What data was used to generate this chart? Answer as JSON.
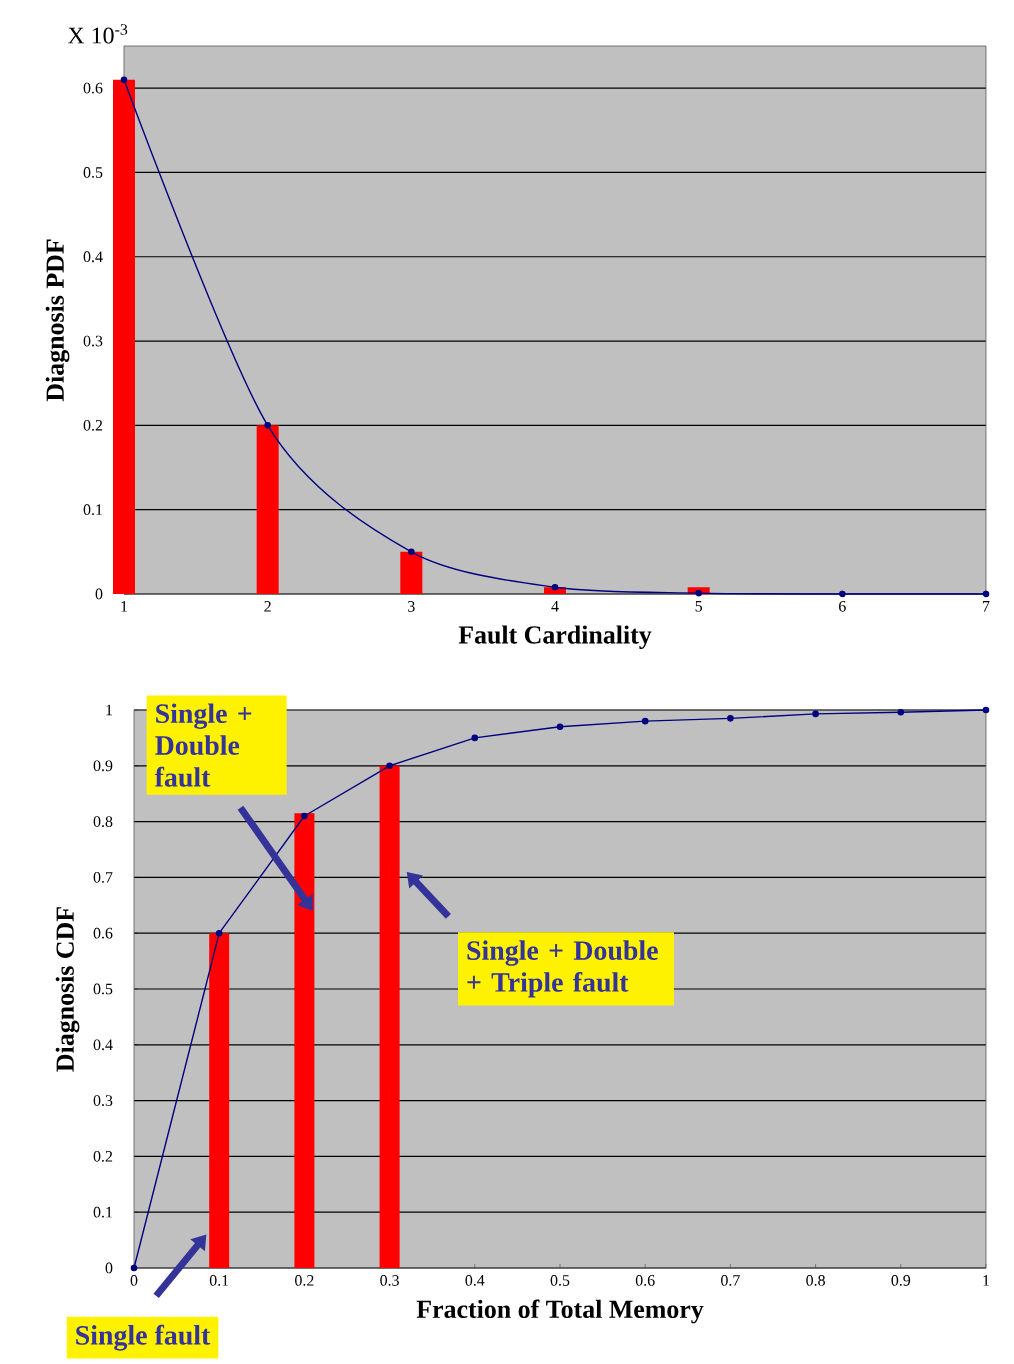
{
  "chart_data": [
    {
      "type": "bar",
      "xlabel": "Fault Cardinality",
      "ylabel": "Diagnosis PDF",
      "annotations": [
        "X 10$^{-3}$"
      ],
      "series": [
        {
          "color": "#ff0000",
          "x": [
            1,
            2,
            3,
            4,
            5
          ],
          "values": [
            0.61,
            0.2,
            0.05,
            0.008,
            0.008
          ]
        },
        {
          "type": "line",
          "color": "#000080",
          "marker": "circle",
          "x": [
            1,
            2,
            3,
            4,
            5,
            6,
            7
          ],
          "values": [
            0.61,
            0.2,
            0.05,
            0.008,
            0.001,
            0,
            0
          ]
        }
      ],
      "xlim": [
        1,
        7
      ],
      "ylim": [
        0,
        0.65
      ],
      "xticks": [
        1,
        2,
        3,
        4,
        5,
        6,
        7
      ],
      "yticks": [
        0,
        0.1,
        0.2,
        0.3,
        0.4,
        0.5,
        0.6
      ],
      "grid": "y"
    },
    {
      "type": "bar",
      "xlabel": "Fraction of Total Memory",
      "ylabel": "Diagnosis CDF",
      "annotations": [
        {
          "text": "Single fault",
          "x": 0.085,
          "y": 0.06
        },
        {
          "text": "Single + Double fault",
          "x": 0.21,
          "y": 0.64
        },
        {
          "text": "Single + Double + Triple fault",
          "x": 0.32,
          "y": 0.71
        }
      ],
      "series": [
        {
          "color": "#ff0000",
          "x": [
            0.1,
            0.2,
            0.3
          ],
          "values": [
            0.6,
            0.815,
            0.9
          ]
        },
        {
          "type": "line",
          "color": "#000080",
          "marker": "circle",
          "x": [
            0,
            0.1,
            0.2,
            0.3,
            0.4,
            0.5,
            0.6,
            0.7,
            0.8,
            0.9,
            1
          ],
          "values": [
            0,
            0.6,
            0.81,
            0.9,
            0.95,
            0.97,
            0.98,
            0.985,
            0.993,
            0.996,
            1
          ]
        }
      ],
      "xlim": [
        0,
        1
      ],
      "ylim": [
        0,
        1
      ],
      "xticks": [
        0,
        0.1,
        0.2,
        0.3,
        0.4,
        0.5,
        0.6,
        0.7,
        0.8,
        0.9,
        1
      ],
      "yticks": [
        0,
        0.1,
        0.2,
        0.3,
        0.4,
        0.5,
        0.6,
        0.7,
        0.8,
        0.9,
        1
      ],
      "grid": "y"
    }
  ]
}
